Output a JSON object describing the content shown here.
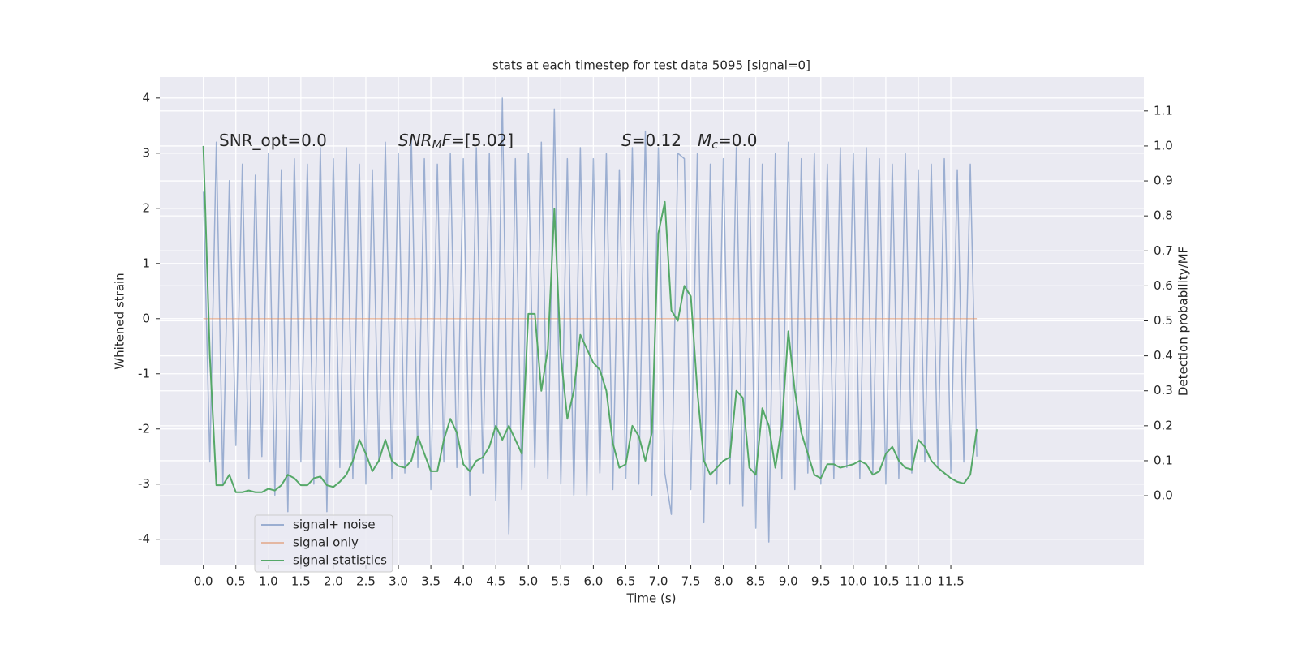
{
  "chart_data": {
    "type": "line",
    "title": "stats at each timestep for test data 5095 [signal=0]",
    "xlabel": "Time (s)",
    "ylabel": "Whitened strain",
    "y2label": "Detection probability/MF",
    "annotations": [
      [
        "SNR_opt=0.0"
      ],
      [
        "SNR",
        "M",
        "F",
        "=[5.02]"
      ],
      [
        "S",
        "=0.12",
        "M",
        "c",
        "=0.0"
      ]
    ],
    "grid": true,
    "legend": "lower left",
    "xlim": [
      -0.67,
      14.47
    ],
    "ylim": [
      -4.46,
      4.38
    ],
    "y2lim": [
      -0.197,
      1.197
    ],
    "xticks": [
      {
        "value": 0,
        "label": "0.0"
      },
      {
        "value": 0.5,
        "label": "0.5"
      },
      {
        "value": 1,
        "label": "1.0"
      },
      {
        "value": 1.5,
        "label": "1.5"
      },
      {
        "value": 2,
        "label": "2.0"
      },
      {
        "value": 2.5,
        "label": "2.5"
      },
      {
        "value": 3,
        "label": "3.0"
      },
      {
        "value": 3.5,
        "label": "3.5"
      },
      {
        "value": 4,
        "label": "4.0"
      },
      {
        "value": 4.5,
        "label": "4.5"
      },
      {
        "value": 5,
        "label": "5.0"
      },
      {
        "value": 5.5,
        "label": "5.5"
      },
      {
        "value": 6,
        "label": "6.0"
      },
      {
        "value": 6.5,
        "label": "6.5"
      },
      {
        "value": 7,
        "label": "7.0"
      },
      {
        "value": 7.5,
        "label": "7.5"
      },
      {
        "value": 8,
        "label": "8.0"
      },
      {
        "value": 8.5,
        "label": "8.5"
      },
      {
        "value": 9,
        "label": "9.0"
      },
      {
        "value": 9.5,
        "label": "9.5"
      },
      {
        "value": 10,
        "label": "10.0"
      },
      {
        "value": 10.5,
        "label": "10.5"
      },
      {
        "value": 11,
        "label": "11.0"
      },
      {
        "value": 11.5,
        "label": "11.5"
      }
    ],
    "yticks": [
      -4,
      -3,
      -2,
      -1,
      0,
      1,
      2,
      3,
      4
    ],
    "y2ticks": [
      {
        "value": 0,
        "label": "0.0"
      },
      {
        "value": 0.1,
        "label": "0.1"
      },
      {
        "value": 0.2,
        "label": "0.2"
      },
      {
        "value": 0.3,
        "label": "0.3"
      },
      {
        "value": 0.4,
        "label": "0.4"
      },
      {
        "value": 0.5,
        "label": "0.5"
      },
      {
        "value": 0.6,
        "label": "0.6"
      },
      {
        "value": 0.7,
        "label": "0.7"
      },
      {
        "value": 0.8,
        "label": "0.8"
      },
      {
        "value": 0.9,
        "label": "0.9"
      },
      {
        "value": 1,
        "label": "1.0"
      },
      {
        "value": 1.1,
        "label": "1.1"
      }
    ],
    "x": [
      0,
      0.1,
      0.2,
      0.3,
      0.4,
      0.5,
      0.6,
      0.7,
      0.8,
      0.9,
      1,
      1.1,
      1.2,
      1.3,
      1.4,
      1.5,
      1.6,
      1.7,
      1.8,
      1.9,
      2,
      2.1,
      2.2,
      2.3,
      2.4,
      2.5,
      2.6,
      2.7,
      2.8,
      2.9,
      3,
      3.1,
      3.2,
      3.3,
      3.4,
      3.5,
      3.6,
      3.7,
      3.8,
      3.9,
      4,
      4.1,
      4.2,
      4.3,
      4.4,
      4.5,
      4.6,
      4.7,
      4.8,
      4.9,
      5,
      5.1,
      5.2,
      5.3,
      5.4,
      5.5,
      5.6,
      5.7,
      5.8,
      5.9,
      6,
      6.1,
      6.2,
      6.3,
      6.4,
      6.5,
      6.6,
      6.7,
      6.8,
      6.9,
      7,
      7.1,
      7.2,
      7.3,
      7.4,
      7.5,
      7.6,
      7.7,
      7.8,
      7.9,
      8,
      8.1,
      8.2,
      8.3,
      8.4,
      8.5,
      8.6,
      8.7,
      8.8,
      8.9,
      9,
      9.1,
      9.2,
      9.3,
      9.4,
      9.5,
      9.6,
      9.7,
      9.8,
      9.9,
      10,
      10.1,
      10.2,
      10.3,
      10.4,
      10.5,
      10.6,
      10.7,
      10.8,
      10.9,
      11,
      11.1,
      11.2,
      11.3,
      11.4,
      11.5,
      11.6,
      11.7,
      11.8,
      11.9
    ],
    "series": [
      {
        "name": "signal+ noise",
        "color": "#4c72b0",
        "alpha": 0.5,
        "values": [
          2.3,
          -2.6,
          3.2,
          -3.0,
          2.5,
          -2.3,
          2.8,
          -2.9,
          2.6,
          -2.5,
          3.0,
          -3.2,
          2.7,
          -3.5,
          2.9,
          -2.6,
          2.8,
          -3.0,
          3.1,
          -3.5,
          2.9,
          -2.7,
          3.1,
          -2.9,
          2.8,
          -3.0,
          2.7,
          -2.6,
          3.2,
          -2.9,
          3.0,
          -2.8,
          3.3,
          -2.7,
          2.9,
          -3.1,
          2.8,
          -2.6,
          3.0,
          -2.7,
          2.9,
          -3.2,
          3.1,
          -2.8,
          3.0,
          -3.3,
          4.0,
          -3.9,
          2.9,
          -3.1,
          3.0,
          -2.7,
          3.2,
          -2.9,
          3.8,
          -3.0,
          2.9,
          -3.2,
          3.1,
          -3.2,
          2.9,
          -2.8,
          3.0,
          -3.1,
          2.7,
          -2.9,
          3.1,
          -3.0,
          3.4,
          -3.2,
          3.1,
          -2.8,
          -3.55,
          3.0,
          2.9,
          -3.1,
          3.0,
          -3.7,
          2.8,
          -3.0,
          2.9,
          -3.0,
          3.1,
          -3.4,
          2.9,
          -3.8,
          2.8,
          -4.05,
          3.0,
          -2.9,
          3.2,
          -3.1,
          2.9,
          -2.8,
          3.0,
          -3.0,
          2.8,
          -2.9,
          3.1,
          -2.7,
          3.0,
          -2.9,
          3.1,
          -2.8,
          2.9,
          -3.0,
          2.8,
          -2.9,
          3.0,
          -2.8,
          2.7,
          -2.6,
          2.8,
          -2.7,
          2.9,
          -2.8,
          2.7,
          -2.6,
          2.8,
          -2.5
        ]
      },
      {
        "name": "signal only",
        "color": "#dd8452",
        "alpha": 0.5,
        "values": [
          0,
          0,
          0,
          0,
          0,
          0,
          0,
          0,
          0,
          0,
          0,
          0,
          0,
          0,
          0,
          0,
          0,
          0,
          0,
          0,
          0,
          0,
          0,
          0,
          0,
          0,
          0,
          0,
          0,
          0,
          0,
          0,
          0,
          0,
          0,
          0,
          0,
          0,
          0,
          0,
          0,
          0,
          0,
          0,
          0,
          0,
          0,
          0,
          0,
          0,
          0,
          0,
          0,
          0,
          0,
          0,
          0,
          0,
          0,
          0,
          0,
          0,
          0,
          0,
          0,
          0,
          0,
          0,
          0,
          0,
          0,
          0,
          0,
          0,
          0,
          0,
          0,
          0,
          0,
          0,
          0,
          0,
          0,
          0,
          0,
          0,
          0,
          0,
          0,
          0,
          0,
          0,
          0,
          0,
          0,
          0,
          0,
          0,
          0,
          0,
          0,
          0,
          0,
          0,
          0,
          0,
          0,
          0,
          0,
          0,
          0,
          0,
          0,
          0,
          0,
          0,
          0,
          0,
          0,
          0
        ]
      },
      {
        "name": "signal statistics",
        "color": "#55a868",
        "alpha": 1,
        "axis": "y2",
        "values": [
          1.0,
          0.4,
          0.03,
          0.03,
          0.06,
          0.01,
          0.01,
          0.015,
          0.01,
          0.01,
          0.02,
          0.015,
          0.03,
          0.06,
          0.05,
          0.03,
          0.03,
          0.05,
          0.055,
          0.03,
          0.025,
          0.04,
          0.06,
          0.1,
          0.16,
          0.12,
          0.07,
          0.1,
          0.16,
          0.1,
          0.085,
          0.08,
          0.1,
          0.17,
          0.12,
          0.07,
          0.07,
          0.16,
          0.22,
          0.18,
          0.09,
          0.07,
          0.1,
          0.11,
          0.14,
          0.2,
          0.16,
          0.2,
          0.16,
          0.12,
          0.52,
          0.52,
          0.3,
          0.42,
          0.82,
          0.4,
          0.22,
          0.3,
          0.46,
          0.42,
          0.38,
          0.36,
          0.3,
          0.15,
          0.08,
          0.09,
          0.2,
          0.17,
          0.1,
          0.18,
          0.75,
          0.84,
          0.53,
          0.5,
          0.6,
          0.57,
          0.3,
          0.1,
          0.06,
          0.08,
          0.1,
          0.11,
          0.3,
          0.28,
          0.08,
          0.06,
          0.25,
          0.2,
          0.08,
          0.2,
          0.47,
          0.3,
          0.18,
          0.12,
          0.06,
          0.05,
          0.09,
          0.09,
          0.08,
          0.085,
          0.09,
          0.1,
          0.09,
          0.06,
          0.07,
          0.12,
          0.14,
          0.1,
          0.08,
          0.075,
          0.16,
          0.14,
          0.1,
          0.08,
          0.065,
          0.05,
          0.04,
          0.035,
          0.06,
          0.19
        ]
      }
    ]
  }
}
